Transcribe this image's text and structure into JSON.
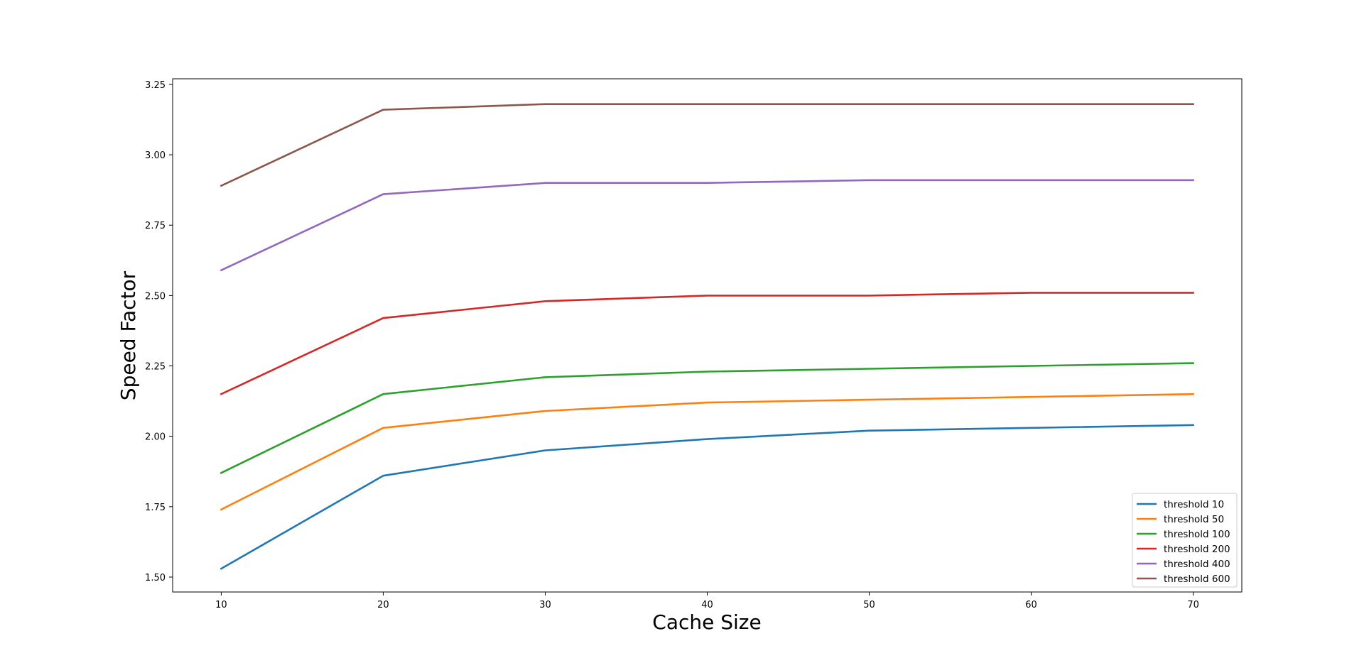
{
  "chart_data": {
    "type": "line",
    "title": "",
    "xlabel": "Cache Size",
    "ylabel": "Speed Factor",
    "x": [
      10,
      20,
      30,
      40,
      50,
      60,
      70
    ],
    "xticks": [
      10,
      20,
      30,
      40,
      50,
      60,
      70
    ],
    "xtick_labels": [
      "10",
      "20",
      "30",
      "40",
      "50",
      "60",
      "70"
    ],
    "yticks": [
      1.5,
      1.75,
      2.0,
      2.25,
      2.5,
      2.75,
      3.0,
      3.25
    ],
    "ytick_labels": [
      "1.50",
      "1.75",
      "2.00",
      "2.25",
      "2.50",
      "2.75",
      "3.00",
      "3.25"
    ],
    "xlim": [
      7,
      73
    ],
    "ylim": [
      1.447,
      3.27
    ],
    "grid": false,
    "legend_position": "lower-right",
    "series": [
      {
        "name": "threshold 10",
        "color": "#1f77b4",
        "values": [
          1.53,
          1.86,
          1.95,
          1.99,
          2.02,
          2.03,
          2.04
        ]
      },
      {
        "name": "threshold 50",
        "color": "#ff7f0e",
        "values": [
          1.74,
          2.03,
          2.09,
          2.12,
          2.13,
          2.14,
          2.15
        ]
      },
      {
        "name": "threshold 100",
        "color": "#2ca02c",
        "values": [
          1.87,
          2.15,
          2.21,
          2.23,
          2.24,
          2.25,
          2.26
        ]
      },
      {
        "name": "threshold 200",
        "color": "#d62728",
        "values": [
          2.15,
          2.42,
          2.48,
          2.5,
          2.5,
          2.51,
          2.51
        ]
      },
      {
        "name": "threshold 400",
        "color": "#9467bd",
        "values": [
          2.59,
          2.86,
          2.9,
          2.9,
          2.91,
          2.91,
          2.91
        ]
      },
      {
        "name": "threshold 600",
        "color": "#8c564b",
        "values": [
          2.89,
          3.16,
          3.18,
          3.18,
          3.18,
          3.18,
          3.18
        ]
      }
    ]
  }
}
